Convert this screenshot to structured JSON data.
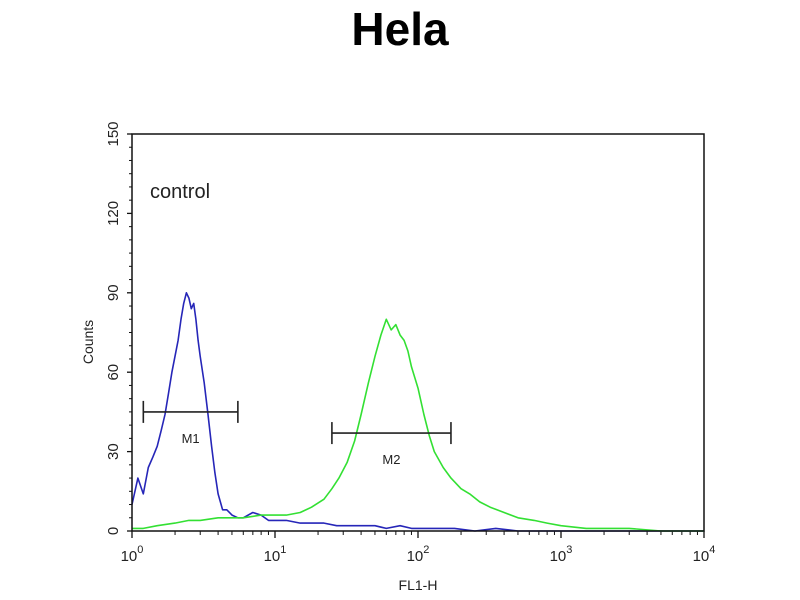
{
  "chart_data": {
    "type": "line",
    "title": "Hela",
    "xlabel": "FL1-H",
    "ylabel": "Counts",
    "x_scale": "log",
    "xlim": [
      1,
      10000
    ],
    "ylim": [
      0,
      150
    ],
    "x_ticks": [
      {
        "value": 1,
        "base": "10",
        "exp": "0"
      },
      {
        "value": 10,
        "base": "10",
        "exp": "1"
      },
      {
        "value": 100,
        "base": "10",
        "exp": "2"
      },
      {
        "value": 1000,
        "base": "10",
        "exp": "3"
      },
      {
        "value": 10000,
        "base": "10",
        "exp": "4"
      }
    ],
    "y_ticks": [
      "0",
      "30",
      "60",
      "90",
      "120",
      "150"
    ],
    "annotation": "control",
    "gates": [
      {
        "name": "M1",
        "x_start": 1.2,
        "x_end": 5.5,
        "y": 45
      },
      {
        "name": "M2",
        "x_start": 25,
        "x_end": 170,
        "y": 37
      }
    ],
    "series": [
      {
        "color": "#2626b8",
        "x": [
          1,
          1.1,
          1.2,
          1.3,
          1.4,
          1.5,
          1.6,
          1.7,
          1.8,
          1.9,
          2.0,
          2.1,
          2.2,
          2.3,
          2.4,
          2.5,
          2.6,
          2.7,
          2.8,
          2.9,
          3.0,
          3.2,
          3.4,
          3.6,
          3.8,
          4.0,
          4.3,
          4.6,
          5.0,
          5.5,
          6.0,
          7.0,
          8.0,
          9.0,
          10,
          12,
          15,
          18,
          22,
          27,
          33,
          40,
          50,
          60,
          75,
          90,
          110,
          140,
          180,
          250,
          350,
          500,
          1000,
          2000,
          5000,
          10000
        ],
        "y": [
          10,
          20,
          14,
          24,
          28,
          32,
          38,
          44,
          52,
          60,
          66,
          72,
          80,
          86,
          90,
          88,
          84,
          86,
          80,
          72,
          66,
          56,
          44,
          32,
          22,
          14,
          8,
          8,
          6,
          5,
          5,
          7,
          6,
          4,
          4,
          4,
          3,
          3,
          3,
          2,
          2,
          2,
          2,
          1,
          2,
          1,
          1,
          1,
          1,
          0,
          1,
          0,
          0,
          0,
          0,
          0
        ]
      },
      {
        "color": "#33e033",
        "x": [
          1,
          1.2,
          1.5,
          2,
          2.5,
          3,
          4,
          5,
          6,
          8,
          10,
          12,
          15,
          18,
          22,
          25,
          28,
          32,
          36,
          40,
          45,
          50,
          55,
          60,
          65,
          70,
          75,
          80,
          85,
          90,
          100,
          110,
          120,
          130,
          150,
          170,
          200,
          230,
          270,
          320,
          400,
          500,
          650,
          800,
          1000,
          1500,
          2000,
          3000,
          5000,
          10000
        ],
        "y": [
          1,
          1,
          2,
          3,
          4,
          4,
          5,
          5,
          5,
          6,
          6,
          6,
          7,
          9,
          12,
          16,
          20,
          26,
          34,
          44,
          56,
          66,
          74,
          80,
          76,
          78,
          74,
          72,
          68,
          62,
          54,
          44,
          36,
          30,
          24,
          20,
          16,
          14,
          11,
          9,
          7,
          5,
          4,
          3,
          2,
          1,
          1,
          1,
          0,
          0
        ]
      }
    ]
  }
}
